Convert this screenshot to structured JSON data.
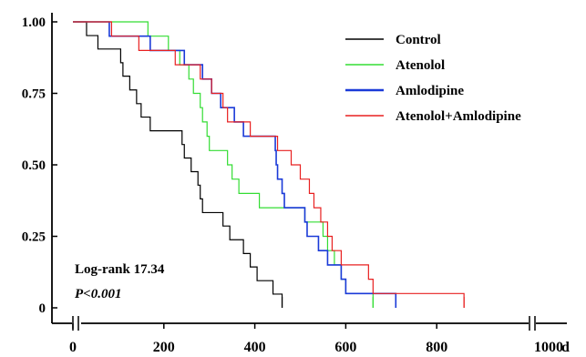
{
  "chart_data": {
    "type": "line",
    "title": "",
    "xlabel": "",
    "ylabel": "",
    "x_unit_label": "d",
    "xlim": [
      0,
      1000
    ],
    "ylim": [
      0,
      1.0
    ],
    "x_axis_break": true,
    "grid": false,
    "legend_position": "top-right",
    "x_ticks": [
      {
        "value": 0,
        "label": "0"
      },
      {
        "value": 200,
        "label": "200"
      },
      {
        "value": 400,
        "label": "400"
      },
      {
        "value": 600,
        "label": "600"
      },
      {
        "value": 800,
        "label": "800"
      },
      {
        "value": 1000,
        "label": "1000"
      }
    ],
    "y_ticks": [
      {
        "value": 0,
        "label": "0"
      },
      {
        "value": 0.25,
        "label": "0.25"
      },
      {
        "value": 0.5,
        "label": "0.50"
      },
      {
        "value": 0.75,
        "label": "0.75"
      },
      {
        "value": 1.0,
        "label": "1.00"
      }
    ],
    "annotations": {
      "logrank": "Log-rank 17.34",
      "p_value": "P<0.001"
    },
    "series": [
      {
        "name": "Control",
        "color": "#000000",
        "steps": [
          [
            0,
            1.0
          ],
          [
            30,
            0.952
          ],
          [
            55,
            0.905
          ],
          [
            105,
            0.857
          ],
          [
            110,
            0.81
          ],
          [
            125,
            0.762
          ],
          [
            140,
            0.714
          ],
          [
            150,
            0.667
          ],
          [
            170,
            0.619
          ],
          [
            240,
            0.571
          ],
          [
            245,
            0.524
          ],
          [
            260,
            0.476
          ],
          [
            275,
            0.429
          ],
          [
            280,
            0.381
          ],
          [
            285,
            0.333
          ],
          [
            330,
            0.286
          ],
          [
            345,
            0.238
          ],
          [
            375,
            0.19
          ],
          [
            390,
            0.143
          ],
          [
            405,
            0.095
          ],
          [
            440,
            0.048
          ],
          [
            460,
            0.0
          ]
        ],
        "end_x": 460
      },
      {
        "name": "Atenolol",
        "color": "#33dd33",
        "steps": [
          [
            0,
            1.0
          ],
          [
            165,
            0.95
          ],
          [
            210,
            0.9
          ],
          [
            235,
            0.85
          ],
          [
            255,
            0.8
          ],
          [
            265,
            0.75
          ],
          [
            280,
            0.7
          ],
          [
            285,
            0.65
          ],
          [
            295,
            0.6
          ],
          [
            300,
            0.55
          ],
          [
            340,
            0.5
          ],
          [
            350,
            0.45
          ],
          [
            365,
            0.4
          ],
          [
            410,
            0.35
          ],
          [
            510,
            0.3
          ],
          [
            550,
            0.25
          ],
          [
            560,
            0.2
          ],
          [
            575,
            0.15
          ],
          [
            590,
            0.1
          ],
          [
            600,
            0.05
          ],
          [
            660,
            0.0
          ]
        ],
        "end_x": 660
      },
      {
        "name": "Amlodipine",
        "color": "#1a3ad8",
        "steps": [
          [
            0,
            1.0
          ],
          [
            80,
            0.95
          ],
          [
            170,
            0.9
          ],
          [
            245,
            0.85
          ],
          [
            285,
            0.8
          ],
          [
            305,
            0.75
          ],
          [
            325,
            0.7
          ],
          [
            355,
            0.65
          ],
          [
            375,
            0.6
          ],
          [
            445,
            0.55
          ],
          [
            447,
            0.5
          ],
          [
            450,
            0.45
          ],
          [
            460,
            0.4
          ],
          [
            465,
            0.35
          ],
          [
            510,
            0.3
          ],
          [
            515,
            0.25
          ],
          [
            540,
            0.2
          ],
          [
            560,
            0.15
          ],
          [
            590,
            0.1
          ],
          [
            600,
            0.05
          ],
          [
            710,
            0.0
          ]
        ],
        "end_x": 710
      },
      {
        "name": "Atenolol+Amlodipine",
        "color": "#e82020",
        "steps": [
          [
            0,
            1.0
          ],
          [
            85,
            0.95
          ],
          [
            145,
            0.9
          ],
          [
            225,
            0.85
          ],
          [
            280,
            0.8
          ],
          [
            305,
            0.75
          ],
          [
            330,
            0.7
          ],
          [
            340,
            0.65
          ],
          [
            390,
            0.6
          ],
          [
            450,
            0.55
          ],
          [
            480,
            0.5
          ],
          [
            500,
            0.45
          ],
          [
            520,
            0.4
          ],
          [
            530,
            0.35
          ],
          [
            545,
            0.3
          ],
          [
            560,
            0.25
          ],
          [
            570,
            0.2
          ],
          [
            590,
            0.15
          ],
          [
            650,
            0.1
          ],
          [
            660,
            0.05
          ],
          [
            860,
            0.0
          ]
        ],
        "end_x": 860
      }
    ]
  }
}
